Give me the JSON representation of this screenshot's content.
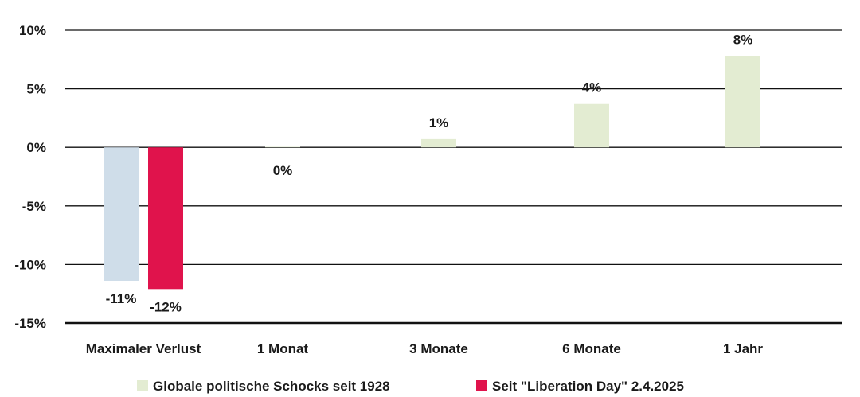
{
  "chart_data": {
    "type": "bar",
    "categories": [
      "Maximaler Verlust",
      "1 Monat",
      "3 Monate",
      "6 Monate",
      "1 Jahr"
    ],
    "series": [
      {
        "name": "Globale politische Schocks seit 1928",
        "values": [
          -11.4,
          0.05,
          0.7,
          3.7,
          7.8
        ],
        "labels": [
          "-11%",
          "0%",
          "1%",
          "4%",
          "8%"
        ],
        "colors": [
          "#cfdde9",
          "#e3ecd2",
          "#e3ecd2",
          "#e3ecd2",
          "#e3ecd2"
        ],
        "legend_color": "#e3ecd2"
      },
      {
        "name": "Seit \"Liberation Day\" 2.4.2025",
        "values": [
          -12.1,
          null,
          null,
          null,
          null
        ],
        "labels": [
          "-12%",
          "",
          "",
          "",
          ""
        ],
        "colors": [
          "#e0134c",
          null,
          null,
          null,
          null
        ],
        "legend_color": "#e0134c"
      }
    ],
    "yticks": [
      10,
      5,
      0,
      -5,
      -10,
      -15
    ],
    "ytick_labels": [
      "10%",
      "5%",
      "0%",
      "-5%",
      "-10%",
      "-15%"
    ],
    "ylim": [
      -15,
      10
    ],
    "grid": true,
    "legend": "bottom",
    "title": "",
    "xlabel": "",
    "ylabel": ""
  }
}
